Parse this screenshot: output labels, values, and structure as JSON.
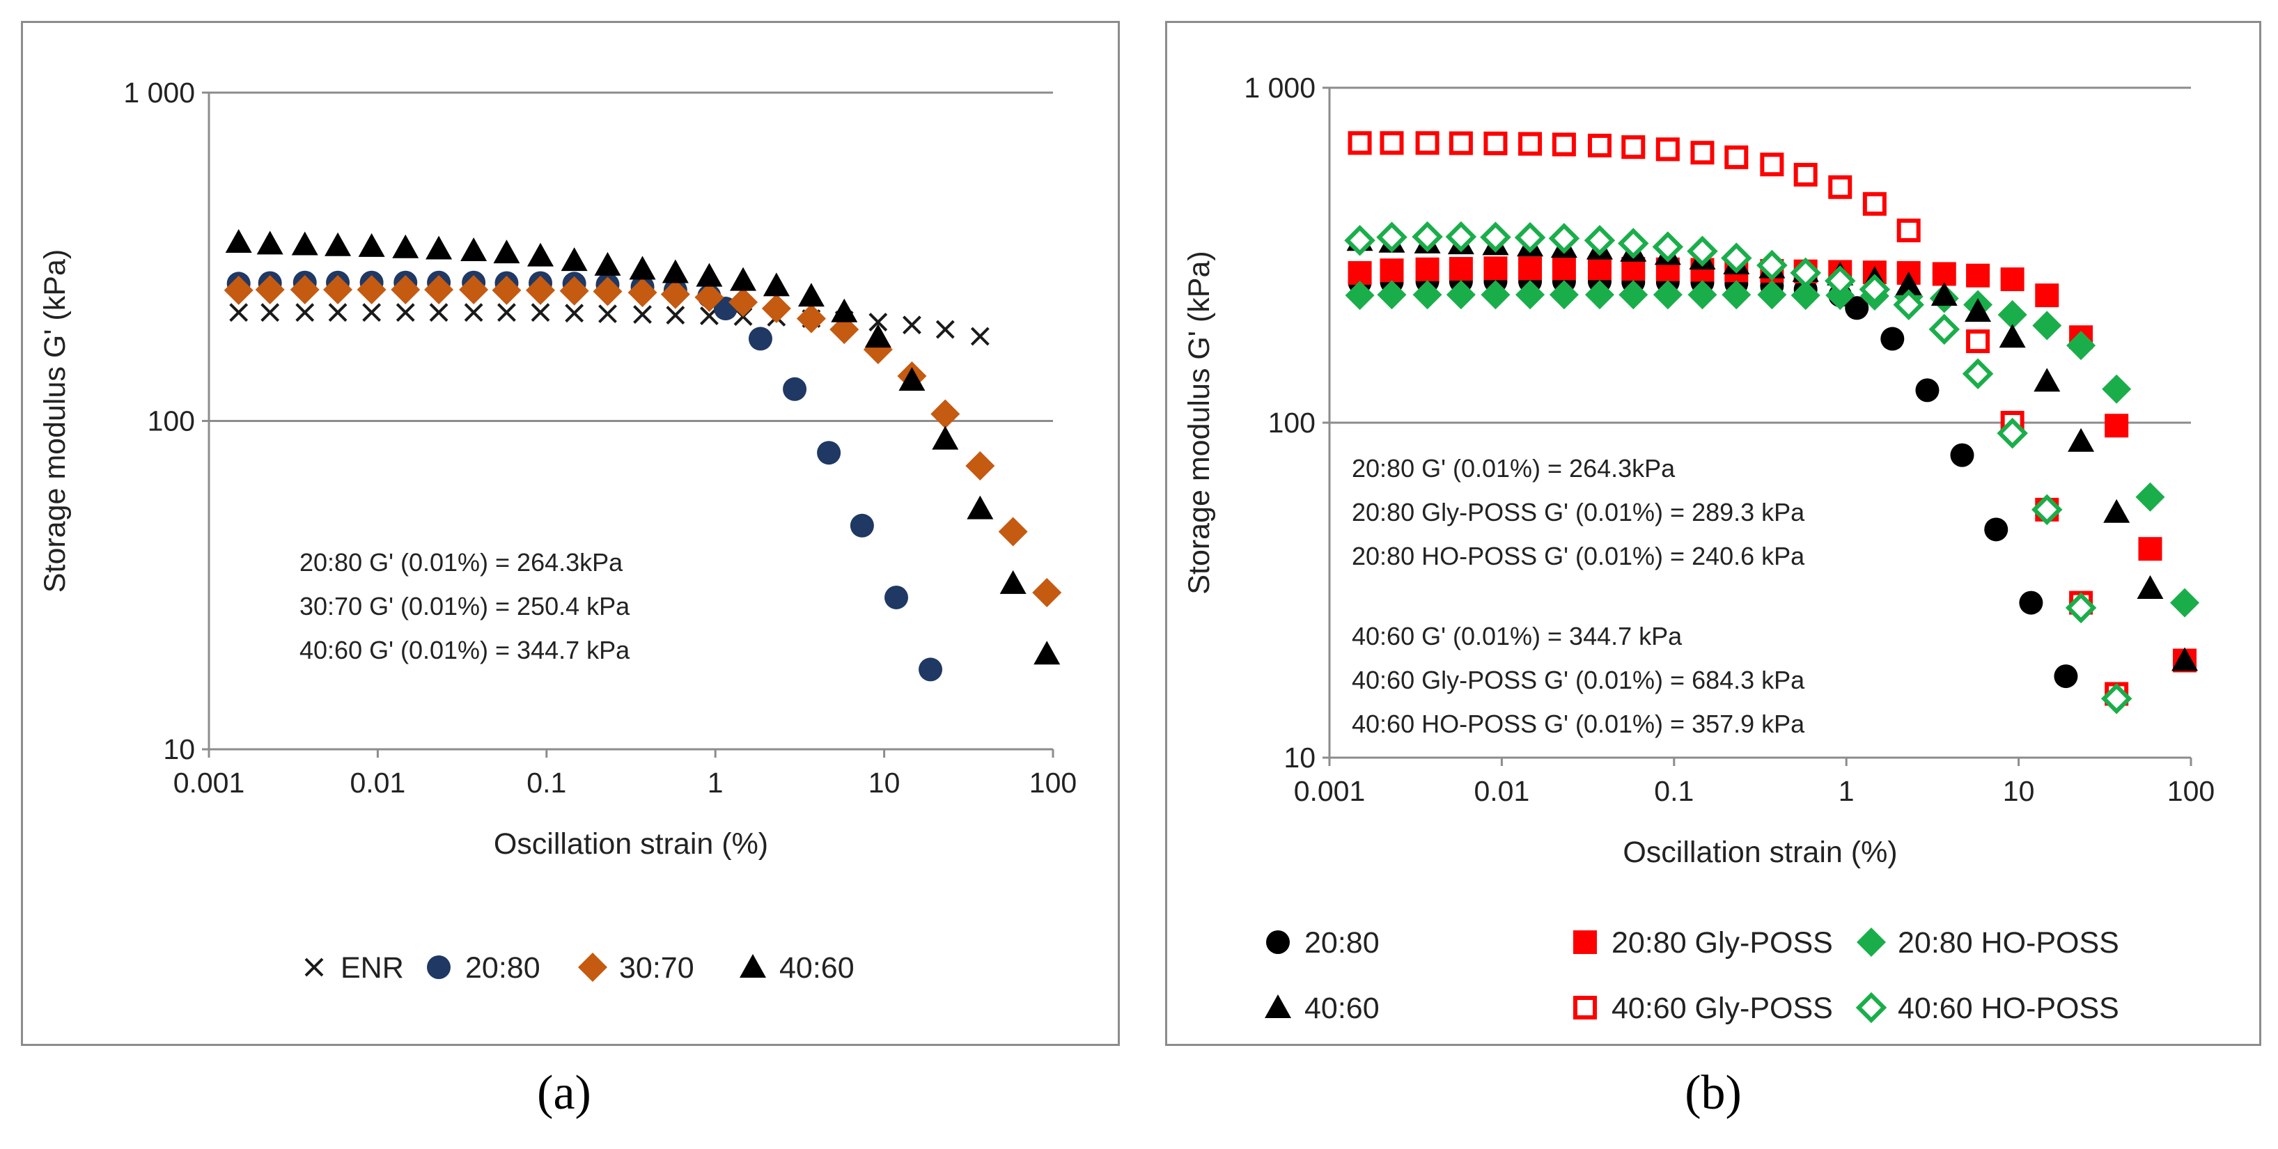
{
  "figure": {
    "panel_a_label": "(a)",
    "panel_b_label": "(b)"
  },
  "chart_data": [
    {
      "id": "a",
      "type": "scatter",
      "xscale": "log",
      "yscale": "log",
      "xlim": [
        0.001,
        100
      ],
      "ylim": [
        10,
        1000
      ],
      "xlabel": "Oscillation strain (%)",
      "ylabel": "Storage modulus G' (kPa)",
      "xticks": [
        {
          "v": 0.001,
          "label": "0.001"
        },
        {
          "v": 0.01,
          "label": "0.01"
        },
        {
          "v": 0.1,
          "label": "0.1"
        },
        {
          "v": 1,
          "label": "1"
        },
        {
          "v": 10,
          "label": "10"
        },
        {
          "v": 100,
          "label": "100"
        }
      ],
      "yticks": [
        {
          "v": 10,
          "label": "10"
        },
        {
          "v": 100,
          "label": "100"
        },
        {
          "v": 1000,
          "label": "1 000"
        }
      ],
      "grid": "horizontal",
      "legend_position": "bottom",
      "annotations": [
        "20:80 G' (0.01%) =  264.3kPa",
        "30:70 G' (0.01%) =  250.4 kPa",
        "40:60 G' (0.01%) = 344.7 kPa"
      ],
      "series": [
        {
          "name": "ENR",
          "marker": "x",
          "color": "#1a1a1a",
          "x": [
            0.0015,
            0.0023,
            0.0037,
            0.0058,
            0.0092,
            0.0146,
            0.023,
            0.037,
            0.058,
            0.092,
            0.146,
            0.23,
            0.37,
            0.58,
            0.92,
            1.46,
            2.3,
            3.7,
            5.8,
            9.2,
            14.6,
            23,
            37
          ],
          "y": [
            214,
            214,
            214,
            214,
            214,
            214,
            214,
            214,
            214,
            214,
            213,
            212,
            211,
            210,
            209,
            208,
            207,
            205,
            203,
            200,
            196,
            190,
            181
          ]
        },
        {
          "name": "20:80",
          "marker": "circle",
          "color": "#1f3864",
          "x": [
            0.0015,
            0.0023,
            0.0037,
            0.0058,
            0.0092,
            0.0146,
            0.023,
            0.037,
            0.058,
            0.092,
            0.146,
            0.23,
            0.37,
            0.58,
            0.92,
            1.15,
            1.85,
            2.95,
            4.7,
            7.4,
            11.8,
            18.8
          ],
          "y": [
            262,
            263,
            264,
            264,
            264,
            264,
            264,
            264,
            263,
            263,
            262,
            260,
            256,
            250,
            240,
            220,
            178,
            125,
            80,
            48,
            29,
            17.5
          ]
        },
        {
          "name": "30:70",
          "marker": "diamond",
          "color": "#c55a11",
          "x": [
            0.0015,
            0.0023,
            0.0037,
            0.0058,
            0.0092,
            0.0146,
            0.023,
            0.037,
            0.058,
            0.092,
            0.146,
            0.23,
            0.37,
            0.58,
            0.92,
            1.46,
            2.3,
            3.7,
            5.8,
            9.2,
            14.6,
            23,
            37,
            58,
            92
          ],
          "y": [
            250,
            251,
            251,
            251,
            251,
            251,
            251,
            251,
            250,
            250,
            249,
            248,
            246,
            243,
            238,
            230,
            220,
            205,
            190,
            165,
            137,
            105,
            73,
            46,
            30
          ]
        },
        {
          "name": "40:60",
          "marker": "triangle",
          "color": "#000000",
          "x": [
            0.0015,
            0.0023,
            0.0037,
            0.0058,
            0.0092,
            0.0146,
            0.023,
            0.037,
            0.058,
            0.092,
            0.146,
            0.23,
            0.37,
            0.58,
            0.92,
            1.46,
            2.3,
            3.7,
            5.8,
            9.2,
            14.6,
            23,
            37,
            58,
            92
          ],
          "y": [
            350,
            346,
            344,
            342,
            340,
            337,
            334,
            330,
            325,
            318,
            308,
            298,
            290,
            283,
            276,
            268,
            258,
            240,
            215,
            180,
            133,
            88,
            54,
            32,
            19.5
          ]
        }
      ]
    },
    {
      "id": "b",
      "type": "scatter",
      "xscale": "log",
      "yscale": "log",
      "xlim": [
        0.001,
        100
      ],
      "ylim": [
        10,
        1000
      ],
      "xlabel": "Oscillation strain (%)",
      "ylabel": "Storage modulus G' (kPa)",
      "xticks": [
        {
          "v": 0.001,
          "label": "0.001"
        },
        {
          "v": 0.01,
          "label": "0.01"
        },
        {
          "v": 0.1,
          "label": "0.1"
        },
        {
          "v": 1,
          "label": "1"
        },
        {
          "v": 10,
          "label": "10"
        },
        {
          "v": 100,
          "label": "100"
        }
      ],
      "yticks": [
        {
          "v": 10,
          "label": "10"
        },
        {
          "v": 100,
          "label": "100"
        },
        {
          "v": 1000,
          "label": "1 000"
        }
      ],
      "grid": "horizontal",
      "legend_position": "bottom",
      "annotations": [
        "20:80 G' (0.01%) =  264.3kPa",
        "20:80 Gly-POSS G' (0.01%) = 289.3 kPa",
        "20:80 HO-POSS G' (0.01%) = 240.6 kPa",
        "40:60 G' (0.01%) = 344.7 kPa",
        "40:60 Gly-POSS G' (0.01%) = 684.3 kPa",
        "40:60 HO-POSS G' (0.01%) = 357.9 kPa"
      ],
      "series": [
        {
          "name": "20:80",
          "marker": "circle",
          "color": "#000000",
          "x": [
            0.0015,
            0.0023,
            0.0037,
            0.0058,
            0.0092,
            0.0146,
            0.023,
            0.037,
            0.058,
            0.092,
            0.146,
            0.23,
            0.37,
            0.58,
            0.92,
            1.15,
            1.85,
            2.95,
            4.7,
            7.4,
            11.8,
            18.8
          ],
          "y": [
            262,
            263,
            264,
            264,
            264,
            264,
            264,
            264,
            263,
            263,
            262,
            260,
            256,
            250,
            240,
            220,
            178,
            125,
            80,
            48,
            29,
            17.5
          ]
        },
        {
          "name": "20:80 Gly-POSS",
          "marker": "square",
          "color": "#ff0000",
          "x": [
            0.0015,
            0.0023,
            0.0037,
            0.0058,
            0.0092,
            0.0146,
            0.023,
            0.037,
            0.058,
            0.092,
            0.146,
            0.23,
            0.37,
            0.58,
            0.92,
            1.46,
            2.3,
            3.7,
            5.8,
            9.2,
            14.6,
            23,
            37,
            58,
            92
          ],
          "y": [
            280,
            285,
            287,
            288,
            289,
            289,
            289,
            289,
            288,
            287,
            286,
            285,
            284,
            283,
            282,
            281,
            280,
            278,
            275,
            268,
            240,
            180,
            98,
            42,
            19.5
          ]
        },
        {
          "name": "20:80 HO-POSS",
          "marker": "diamond",
          "color": "#1aae4b",
          "x": [
            0.0015,
            0.0023,
            0.0037,
            0.0058,
            0.0092,
            0.0146,
            0.023,
            0.037,
            0.058,
            0.092,
            0.146,
            0.23,
            0.37,
            0.58,
            0.92,
            1.46,
            2.3,
            3.7,
            5.8,
            9.2,
            14.6,
            23,
            37,
            58,
            92
          ],
          "y": [
            240,
            241,
            241,
            241,
            241,
            241,
            241,
            241,
            241,
            241,
            241,
            241,
            241,
            240,
            240,
            239,
            238,
            235,
            225,
            210,
            195,
            170,
            126,
            60,
            29
          ]
        },
        {
          "name": "40:60",
          "marker": "triangle",
          "color": "#000000",
          "x": [
            0.0015,
            0.0023,
            0.0037,
            0.0058,
            0.0092,
            0.0146,
            0.023,
            0.037,
            0.058,
            0.092,
            0.146,
            0.23,
            0.37,
            0.58,
            0.92,
            1.46,
            2.3,
            3.7,
            5.8,
            9.2,
            14.6,
            23,
            37,
            58,
            92
          ],
          "y": [
            350,
            346,
            344,
            342,
            340,
            337,
            334,
            330,
            325,
            318,
            308,
            298,
            290,
            283,
            276,
            268,
            258,
            240,
            215,
            180,
            133,
            88,
            54,
            32,
            19.5
          ]
        },
        {
          "name": "40:60 Gly-POSS",
          "marker": "square-open",
          "color": "#ff0000",
          "x": [
            0.0015,
            0.0023,
            0.0037,
            0.0058,
            0.0092,
            0.0146,
            0.023,
            0.037,
            0.058,
            0.092,
            0.146,
            0.23,
            0.37,
            0.58,
            0.92,
            1.46,
            2.3,
            5.8,
            9.2,
            14.6,
            23,
            37
          ],
          "y": [
            684,
            684,
            684,
            683,
            682,
            680,
            677,
            672,
            665,
            655,
            640,
            620,
            590,
            550,
            505,
            450,
            375,
            175,
            100,
            55,
            29,
            15.5
          ]
        },
        {
          "name": "40:60 HO-POSS",
          "marker": "diamond-open",
          "color": "#1aae4b",
          "x": [
            0.0015,
            0.0023,
            0.0037,
            0.0058,
            0.0092,
            0.0146,
            0.023,
            0.037,
            0.058,
            0.092,
            0.146,
            0.23,
            0.37,
            0.58,
            0.92,
            1.46,
            2.3,
            3.7,
            5.8,
            9.2,
            14.6,
            23,
            37
          ],
          "y": [
            350,
            358,
            359,
            359,
            358,
            357,
            355,
            350,
            343,
            335,
            325,
            310,
            295,
            280,
            265,
            250,
            225,
            190,
            140,
            93,
            55,
            28,
            15
          ]
        }
      ]
    }
  ]
}
